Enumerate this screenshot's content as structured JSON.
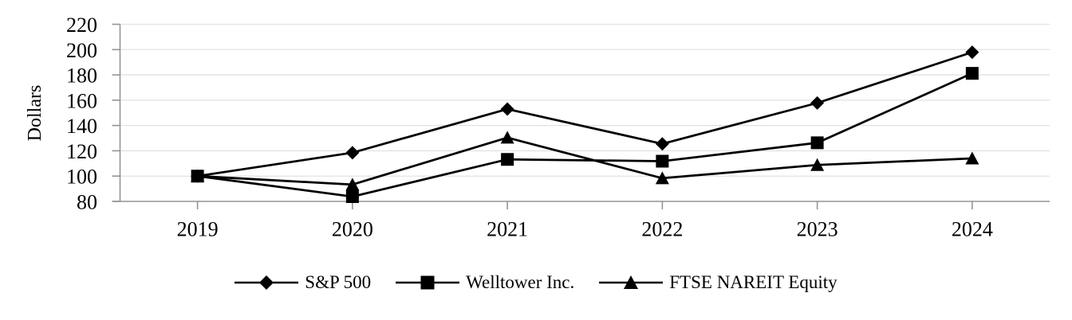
{
  "page": {
    "background": "#ffffff",
    "description": "Comparison of cumulative total return line chart"
  },
  "chart_data": {
    "type": "line",
    "title": "",
    "xlabel": "",
    "ylabel": "Dollars",
    "categories": [
      "2019",
      "2020",
      "2021",
      "2022",
      "2023",
      "2024"
    ],
    "ylim": [
      80,
      220
    ],
    "ytick_step": 20,
    "ytick_labels": [
      "80",
      "100",
      "120",
      "140",
      "160",
      "180",
      "200",
      "220"
    ],
    "grid": "horizontal",
    "legend_position": "bottom",
    "series": [
      {
        "name": "S&P 500",
        "marker": "diamond",
        "color": "#000000",
        "values": [
          100,
          118.5,
          153.0,
          125.5,
          157.8,
          197.9
        ]
      },
      {
        "name": "Welltower Inc.",
        "marker": "square",
        "color": "#000000",
        "values": [
          100,
          83.8,
          113.2,
          111.8,
          126.3,
          181.2
        ]
      },
      {
        "name": "FTSE NAREIT Equity",
        "marker": "triangle",
        "color": "#000000",
        "values": [
          100,
          93.3,
          130.4,
          98.3,
          108.8,
          114.0
        ]
      }
    ],
    "colors": {
      "grid": "#e2e2e2",
      "axis": "#949494",
      "text": "#000000",
      "line": "#000000"
    }
  }
}
